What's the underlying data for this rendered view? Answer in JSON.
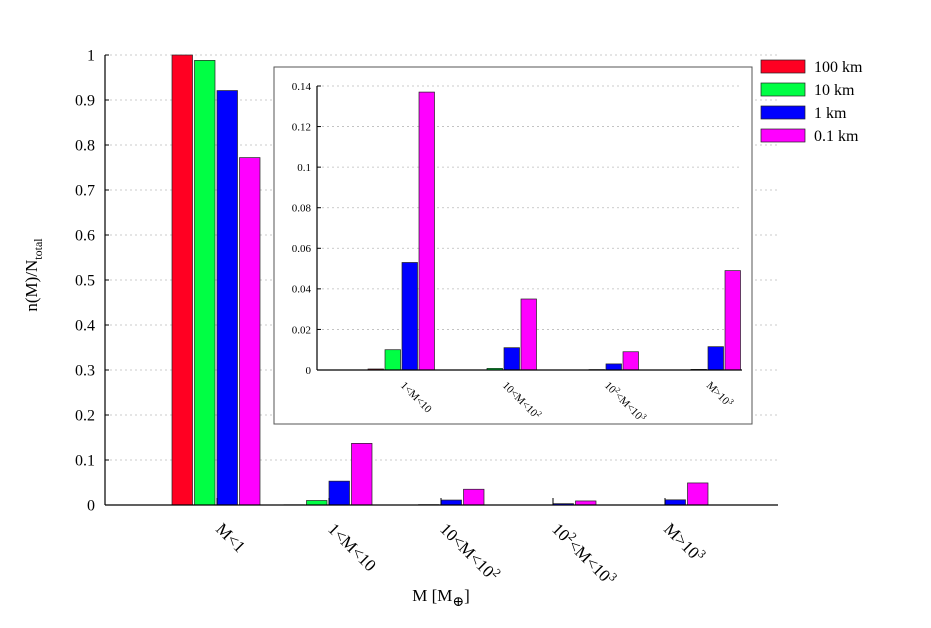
{
  "chart_data": [
    {
      "type": "bar",
      "ylabel_main": "n(M)/N",
      "ylabel_sub": "total",
      "xlabel_main": "M [M",
      "xlabel_sub": "⊕",
      "xlabel_close": "]",
      "categories": [
        {
          "base": "M<1",
          "sup": "",
          "tail": ""
        },
        {
          "base": "1<M<10",
          "sup": "",
          "tail": ""
        },
        {
          "base": "10<M<10",
          "sup": "2",
          "tail": ""
        },
        {
          "base": "10",
          "sup": "2",
          "tail": "<M<10",
          "sup2": "3"
        },
        {
          "base": "M>10",
          "sup": "3",
          "tail": ""
        }
      ],
      "ylim": [
        0,
        1
      ],
      "yticks": [
        "0",
        "0.1",
        "0.2",
        "0.3",
        "0.4",
        "0.5",
        "0.6",
        "0.7",
        "0.8",
        "0.9",
        "1"
      ],
      "grid": true,
      "legend_position": "top-right",
      "series": [
        {
          "name": "100 km",
          "color": "#ff0022",
          "values": [
            1.0,
            0.0005,
            0.0,
            0.0,
            0.0
          ]
        },
        {
          "name": "10 km",
          "color": "#00ff44",
          "values": [
            0.988,
            0.01,
            0.0008,
            0.0002,
            0.0003
          ]
        },
        {
          "name": "1 km",
          "color": "#0000ff",
          "values": [
            0.921,
            0.053,
            0.011,
            0.003,
            0.0115
          ]
        },
        {
          "name": "0.1 km",
          "color": "#ff00ff",
          "values": [
            0.772,
            0.137,
            0.035,
            0.009,
            0.049
          ]
        }
      ]
    },
    {
      "type": "bar",
      "inset": true,
      "categories": [
        {
          "base": "1<M<10",
          "sup": "",
          "tail": ""
        },
        {
          "base": "10<M<10",
          "sup": "2",
          "tail": ""
        },
        {
          "base": "10",
          "sup": "2",
          "tail": "<M<10",
          "sup2": "3"
        },
        {
          "base": "M>10",
          "sup": "3",
          "tail": ""
        }
      ],
      "ylim": [
        0,
        0.14
      ],
      "yticks": [
        "0",
        "0.02",
        "0.04",
        "0.06",
        "0.08",
        "0.1",
        "0.12",
        "0.14"
      ],
      "grid": true,
      "series": [
        {
          "name": "100 km",
          "color": "#ff0022",
          "values": [
            0.0005,
            0.0,
            0.0,
            0.0
          ]
        },
        {
          "name": "10 km",
          "color": "#00ff44",
          "values": [
            0.01,
            0.0008,
            0.0002,
            0.0003
          ]
        },
        {
          "name": "1 km",
          "color": "#0000ff",
          "values": [
            0.053,
            0.011,
            0.003,
            0.0115
          ]
        },
        {
          "name": "0.1 km",
          "color": "#ff00ff",
          "values": [
            0.137,
            0.035,
            0.009,
            0.049
          ]
        }
      ]
    }
  ]
}
